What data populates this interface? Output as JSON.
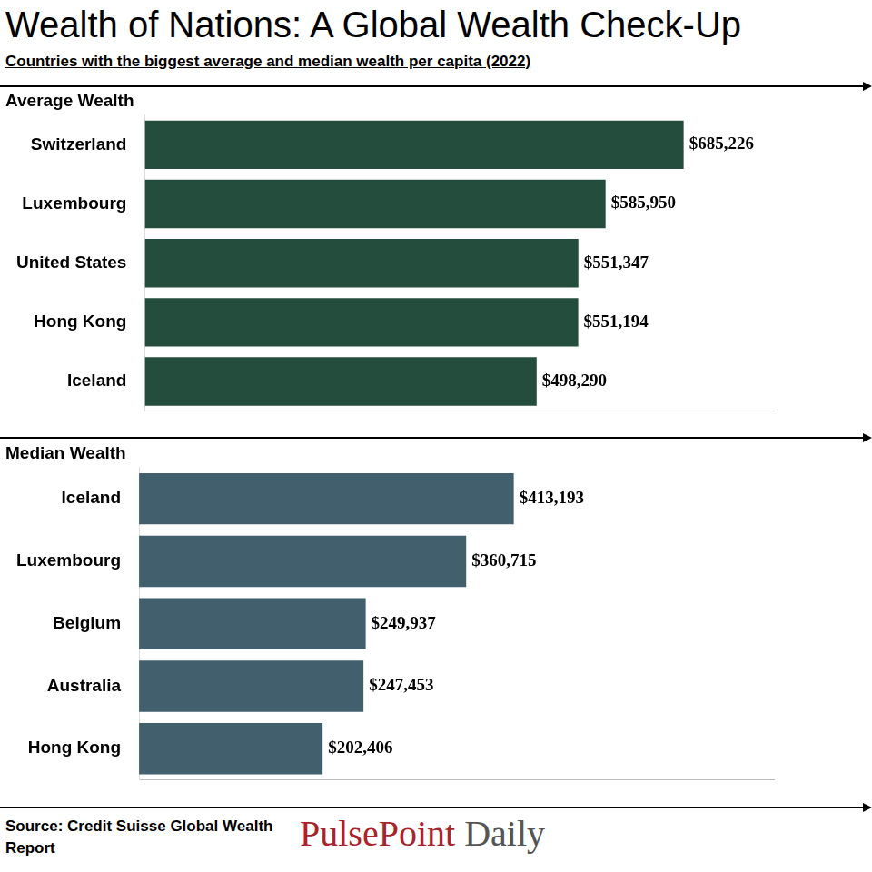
{
  "title": "Wealth of Nations: A Global Wealth Check-Up",
  "subtitle": "Countries with the biggest average and median wealth per capita (2022)",
  "source": "Source: Credit Suisse Global Wealth Report",
  "brand": "PulsePoint Daily",
  "chart_data": [
    {
      "type": "bar",
      "title": "Average Wealth",
      "orientation": "horizontal",
      "categories": [
        "Switzerland",
        "Luxembourg",
        "United States",
        "Hong Kong",
        "Iceland"
      ],
      "values": [
        685226,
        585950,
        551347,
        551194,
        498290
      ],
      "value_labels": [
        "$685,226",
        "$585,950",
        "$551,347",
        "$551,194",
        "$498,290"
      ],
      "color": "#254d3e",
      "xlim": [
        0,
        800000
      ],
      "grid": false,
      "data_labels": true,
      "tick_labels": "y"
    },
    {
      "type": "bar",
      "title": "Median Wealth",
      "orientation": "horizontal",
      "categories": [
        "Iceland",
        "Luxembourg",
        "Belgium",
        "Australia",
        "Hong Kong"
      ],
      "values": [
        413193,
        360715,
        249937,
        247453,
        202406
      ],
      "value_labels": [
        "$413,193",
        "$360,715",
        "$249,937",
        "$247,453",
        "$202,406"
      ],
      "color": "#425f6e",
      "xlim": [
        0,
        700000
      ],
      "grid": false,
      "data_labels": true,
      "tick_labels": "y"
    }
  ]
}
